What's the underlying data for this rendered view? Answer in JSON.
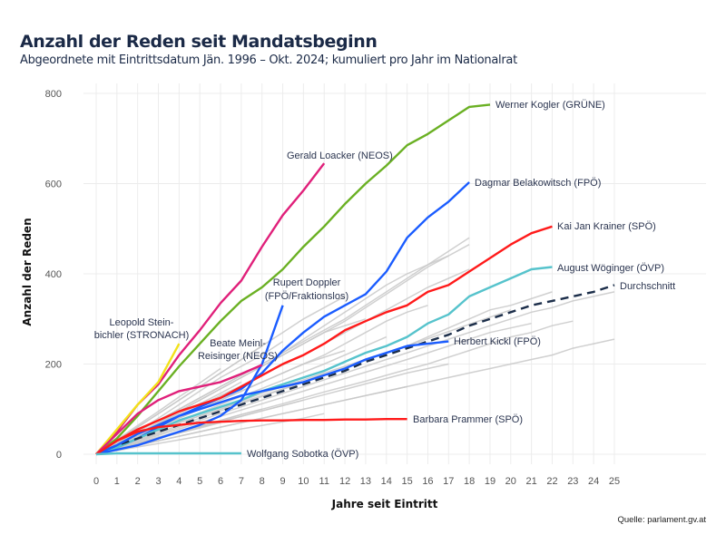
{
  "title": "Anzahl der Reden seit Mandatsbeginn",
  "subtitle": "Abgeordnete mit Eintrittsdatum Jän. 1996 – Okt. 2024; kumuliert pro Jahr im Nationalrat",
  "source": "Quelle: parlament.gv.at",
  "chart_data": {
    "type": "line",
    "xlabel": "Jahre seit Eintritt",
    "ylabel": "Anzahl der Reden",
    "xlim": [
      0,
      25
    ],
    "ylim": [
      0,
      800
    ],
    "x_ticks": [
      "0",
      "1",
      "2",
      "3",
      "4",
      "5",
      "6",
      "7",
      "8",
      "9",
      "10",
      "11",
      "12",
      "13",
      "14",
      "15",
      "16",
      "17",
      "18",
      "19",
      "20",
      "21",
      "22",
      "23",
      "24",
      "25"
    ],
    "y_ticks": [
      "0",
      "200",
      "400",
      "600",
      "800"
    ],
    "grid": true,
    "legend": "none (direct labels)",
    "other_color": "#c8c8c8",
    "other_series": [
      [
        0,
        15,
        30,
        45,
        60,
        75,
        90,
        105,
        120,
        135,
        150,
        165,
        180,
        195,
        210,
        225,
        240,
        255,
        270,
        285,
        300,
        315,
        325,
        340,
        350,
        360
      ],
      [
        0,
        10,
        20,
        30,
        40,
        50,
        60,
        70,
        80,
        90,
        100,
        110,
        120,
        130,
        140,
        150,
        160,
        170,
        180,
        190,
        200,
        210,
        220,
        235,
        245,
        255
      ],
      [
        0,
        12,
        25,
        38,
        50,
        62,
        75,
        88,
        100,
        112,
        125,
        138,
        150,
        162,
        175,
        188,
        200,
        215,
        230,
        245,
        260,
        270,
        285,
        295
      ],
      [
        0,
        18,
        35,
        52,
        70,
        85,
        100,
        118,
        135,
        150,
        165,
        180,
        195,
        210,
        225,
        240,
        260,
        280,
        300,
        320,
        330,
        345,
        360
      ],
      [
        0,
        25,
        50,
        75,
        100,
        125,
        150,
        175,
        200,
        225,
        250,
        275,
        300,
        330,
        360,
        390,
        420,
        450,
        480
      ],
      [
        0,
        22,
        45,
        70,
        95,
        120,
        145,
        170,
        195,
        220,
        245,
        270,
        295,
        325,
        355,
        385,
        415,
        440,
        465
      ],
      [
        0,
        25,
        50,
        75,
        100,
        125,
        150,
        175,
        200,
        225,
        255,
        285,
        315,
        345,
        375,
        400,
        420,
        440
      ],
      [
        0,
        20,
        40,
        62,
        85,
        108,
        130,
        152,
        175,
        198,
        220,
        245,
        270,
        295,
        320,
        345,
        370,
        390,
        410
      ],
      [
        0,
        12,
        24,
        36,
        48,
        60,
        72,
        84,
        96,
        108,
        120,
        132,
        144,
        156,
        168,
        180,
        190,
        200
      ],
      [
        0,
        20,
        45,
        70,
        95,
        120,
        145,
        170,
        195,
        220,
        245,
        270,
        285,
        300
      ],
      [
        0,
        20,
        40,
        60,
        80,
        100,
        120,
        140,
        160,
        180,
        200,
        215,
        230
      ],
      [
        0,
        18,
        35,
        52,
        70,
        85,
        100,
        115,
        130,
        145,
        160,
        180
      ],
      [
        0,
        12,
        24,
        36,
        48,
        60,
        72,
        84,
        96,
        108,
        120
      ],
      [
        0,
        12,
        25,
        37,
        50,
        62,
        75,
        88,
        100
      ],
      [
        0,
        22,
        45,
        68,
        90,
        112,
        135,
        160
      ],
      [
        0,
        12,
        24,
        35,
        47,
        58,
        70
      ],
      [
        0,
        12,
        24,
        36,
        48,
        60
      ],
      [
        0,
        22,
        45,
        68,
        90
      ],
      [
        0,
        25,
        50,
        80,
        110,
        140,
        170,
        195,
        220,
        250
      ],
      [
        0,
        18,
        36,
        55,
        73,
        92,
        110,
        128,
        146,
        164,
        182,
        200,
        220,
        240,
        260
      ],
      [
        0,
        20,
        40,
        60,
        80,
        100,
        120,
        140,
        160,
        180,
        200,
        220,
        245,
        270,
        295,
        315,
        330
      ],
      [
        0,
        16,
        32,
        48,
        64,
        80,
        96,
        112,
        128,
        144,
        160,
        176,
        192,
        208,
        224,
        240,
        256,
        272,
        288,
        304,
        320
      ],
      [
        0,
        10,
        20,
        30,
        40,
        50,
        60,
        70,
        80,
        90,
        100,
        110,
        120,
        130,
        140,
        150
      ],
      [
        0,
        8,
        16,
        24,
        32,
        40,
        48,
        56,
        64,
        72,
        80,
        90
      ],
      [
        0,
        30,
        60,
        90,
        120,
        150,
        180,
        210,
        240,
        270,
        300,
        325,
        350
      ],
      [
        0,
        14,
        28,
        42,
        56,
        70,
        84,
        98,
        112,
        126,
        140,
        154,
        168,
        182,
        196,
        210,
        225,
        240,
        255,
        270,
        280,
        290
      ],
      [
        0,
        30,
        60,
        90,
        120,
        150,
        180,
        210,
        240
      ],
      [
        0,
        32,
        64,
        95,
        127,
        158,
        190
      ]
    ],
    "series": [
      {
        "name": "Werner Kogler (GRÜNE)",
        "color": "#6ab023",
        "values": [
          0,
          35,
          85,
          140,
          195,
          245,
          295,
          340,
          370,
          410,
          460,
          505,
          555,
          600,
          640,
          685,
          710,
          740,
          770,
          775
        ]
      },
      {
        "name": "Gerald Loacker (NEOS)",
        "color": "#e0207a",
        "values": [
          0,
          50,
          110,
          155,
          220,
          275,
          335,
          385,
          460,
          530,
          585,
          645
        ]
      },
      {
        "name": "Dagmar Belakowitsch (FPÖ)",
        "color": "#1a5cff",
        "values": [
          0,
          15,
          35,
          60,
          85,
          105,
          125,
          145,
          180,
          230,
          270,
          305,
          330,
          355,
          405,
          480,
          525,
          560,
          603
        ]
      },
      {
        "name": "Kai Jan Krainer (SPÖ)",
        "color": "#ff1a1a",
        "values": [
          0,
          30,
          55,
          75,
          95,
          110,
          125,
          150,
          175,
          200,
          220,
          245,
          275,
          295,
          315,
          330,
          360,
          375,
          405,
          435,
          465,
          490,
          505
        ]
      },
      {
        "name": "August Wöginger (ÖVP)",
        "color": "#56c3cc",
        "values": [
          0,
          15,
          35,
          55,
          75,
          90,
          105,
          120,
          140,
          155,
          170,
          185,
          205,
          225,
          240,
          260,
          290,
          310,
          350,
          370,
          390,
          410,
          415
        ]
      },
      {
        "name": "Durchschnitt",
        "color": "#1c2e4a",
        "dashed": true,
        "values": [
          0,
          20,
          35,
          50,
          65,
          80,
          95,
          110,
          125,
          140,
          155,
          170,
          185,
          205,
          220,
          235,
          250,
          265,
          285,
          300,
          315,
          330,
          340,
          350,
          360,
          375
        ]
      },
      {
        "name": "Rupert Doppler (FPÖ/Fraktionslos)",
        "color": "#1a5cff",
        "values": [
          0,
          10,
          20,
          35,
          50,
          65,
          85,
          120,
          200,
          330
        ]
      },
      {
        "name": "Leopold Steinbichler (STRONACH)",
        "color": "#f2e21a",
        "values": [
          0,
          55,
          110,
          160,
          245
        ]
      },
      {
        "name": "Beate Meinl-Reisinger (NEOS)",
        "color": "#e0207a",
        "values": [
          0,
          45,
          90,
          120,
          140,
          150,
          160,
          178,
          198
        ]
      },
      {
        "name": "Herbert Kickl (FPÖ)",
        "color": "#1a5cff",
        "values": [
          0,
          20,
          45,
          65,
          85,
          100,
          115,
          130,
          140,
          150,
          160,
          175,
          190,
          210,
          225,
          240,
          245,
          250
        ]
      },
      {
        "name": "Barbara Prammer (SPÖ)",
        "color": "#ff1a1a",
        "values": [
          0,
          30,
          50,
          60,
          65,
          70,
          72,
          74,
          75,
          75,
          76,
          76,
          77,
          77,
          78,
          78
        ]
      },
      {
        "name": "Wolfgang Sobotka (ÖVP)",
        "color": "#56c3cc",
        "values": [
          0,
          2,
          2,
          2,
          2,
          2,
          2,
          2
        ]
      }
    ],
    "labels": {
      "kogler": "Werner Kogler (GRÜNE)",
      "loacker": "Gerald Loacker (NEOS)",
      "belakowitsch": "Dagmar Belakowitsch (FPÖ)",
      "krainer": "Kai Jan Krainer (SPÖ)",
      "woeginger": "August Wöginger (ÖVP)",
      "durchschnitt": "Durchschnitt",
      "doppler_1": "Rupert Doppler",
      "doppler_2": "(FPÖ/Fraktionslos)",
      "steinbichler_1": "Leopold Stein-",
      "steinbichler_2": "bichler (STRONACH)",
      "meinl_1": "Beate Meinl-",
      "meinl_2": "Reisinger (NEOS)",
      "kickl": "Herbert Kickl (FPÖ)",
      "prammer": "Barbara Prammer (SPÖ)",
      "sobotka": "Wolfgang Sobotka (ÖVP)"
    }
  }
}
